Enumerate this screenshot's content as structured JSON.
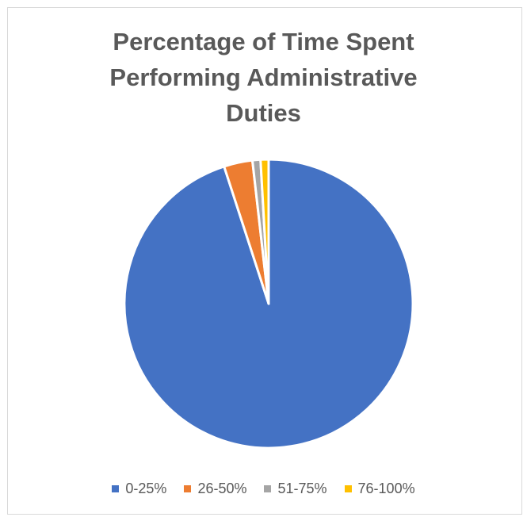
{
  "chart_data": {
    "type": "pie",
    "title_lines": [
      "Percentage of Time Spent",
      "Performing Administrative",
      "Duties"
    ],
    "categories": [
      "0-25%",
      "26-50%",
      "51-75%",
      "76-100%"
    ],
    "values": [
      95,
      3.2,
      0.9,
      0.9
    ],
    "colors": [
      "#4472C4",
      "#ED7D31",
      "#A5A5A5",
      "#FFC000"
    ],
    "legend_position": "bottom",
    "start_angle_deg": 0,
    "direction": "clockwise"
  }
}
